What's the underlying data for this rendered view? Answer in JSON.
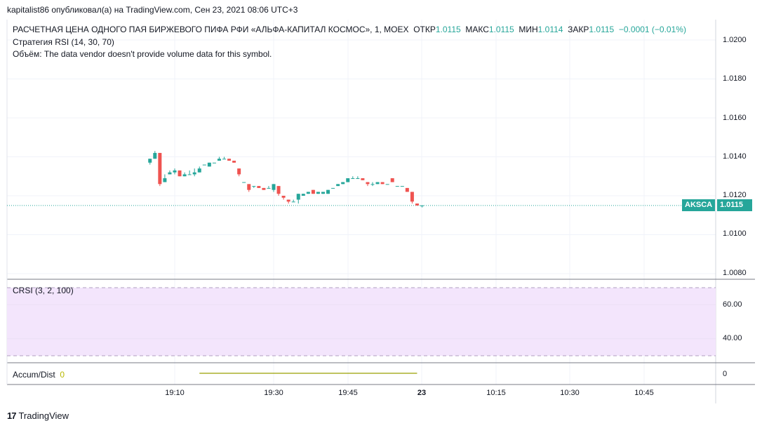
{
  "header": {
    "published_line": "kapitalist86 опубликовал(а) на TradingView.com, Сен 23, 2021 08:06 UTC+3"
  },
  "legend": {
    "symbol_title": "РАСЧЕТНАЯ ЦЕНА ОДНОГО ПАЯ БИРЖЕВОГО ПИФА РФИ «АЛЬФА-КАПИТАЛ КОСМОС», 1, MOEX",
    "open_label": "ОТКР",
    "open_value": "1.0115",
    "high_label": "МАКС",
    "high_value": "1.0115",
    "low_label": "МИН",
    "low_value": "1.0114",
    "close_label": "ЗАКР",
    "close_value": "1.0115",
    "change": "−0.0001 (−0.01%)",
    "strategy": "Стратегия RSI (14, 30, 70)",
    "volume_line": "Объём: The data vendor doesn't provide volume data for this symbol."
  },
  "crsi": {
    "label": "CRSI (3, 2, 100)",
    "band_color": "#f3e5fc",
    "ticks": [
      "60.00",
      "40.00"
    ],
    "upper": 70,
    "lower": 30,
    "range": [
      20,
      80
    ]
  },
  "accum": {
    "label": "Accum/Dist",
    "value": "0",
    "value_color": "#b8b800",
    "axis_tick": "0",
    "line_range": [
      "19:15",
      "19:59"
    ]
  },
  "price_axis": {
    "ticks": [
      "1.0200",
      "1.0180",
      "1.0160",
      "1.0140",
      "1.0120",
      "1.0100",
      "1.0080"
    ],
    "ymin": 1.0077,
    "ymax": 1.0209
  },
  "last_price": {
    "symbol": "AKSCA",
    "value": "1.0115",
    "numeric": 1.0115,
    "color": "#26a69a"
  },
  "time_axis": {
    "labels": [
      "19:10",
      "19:30",
      "19:45",
      "23",
      "10:15",
      "10:30",
      "10:45"
    ]
  },
  "footer": {
    "brand": "TradingView",
    "logo_text": "17"
  },
  "chart_data": {
    "type": "candlestick",
    "timeframe": "1",
    "up_color": "#26a69a",
    "down_color": "#ef5350",
    "candles": [
      {
        "t": "19:05",
        "o": 1.0137,
        "h": 1.0139,
        "c": 1.0139,
        "l": 1.0136
      },
      {
        "t": "19:06",
        "o": 1.0139,
        "h": 1.0143,
        "c": 1.0142,
        "l": 1.0139
      },
      {
        "t": "19:07",
        "o": 1.0142,
        "h": 1.0142,
        "c": 1.0126,
        "l": 1.0125
      },
      {
        "t": "19:08",
        "o": 1.0127,
        "h": 1.0131,
        "c": 1.0129,
        "l": 1.0127
      },
      {
        "t": "19:09",
        "o": 1.0131,
        "h": 1.0133,
        "c": 1.0132,
        "l": 1.0131
      },
      {
        "t": "19:10",
        "o": 1.0132,
        "h": 1.0134,
        "c": 1.0133,
        "l": 1.0131
      },
      {
        "t": "19:11",
        "o": 1.0133,
        "h": 1.0133,
        "c": 1.013,
        "l": 1.013
      },
      {
        "t": "19:12",
        "o": 1.013,
        "h": 1.0132,
        "c": 1.0131,
        "l": 1.013
      },
      {
        "t": "19:13",
        "o": 1.0131,
        "h": 1.0133,
        "c": 1.0131,
        "l": 1.0131
      },
      {
        "t": "19:14",
        "o": 1.0131,
        "h": 1.0134,
        "c": 1.0132,
        "l": 1.013
      },
      {
        "t": "19:15",
        "o": 1.0132,
        "h": 1.0135,
        "c": 1.0134,
        "l": 1.0132
      },
      {
        "t": "19:16",
        "o": 1.0136,
        "h": 1.0136,
        "c": 1.0136,
        "l": 1.0136
      },
      {
        "t": "19:17",
        "o": 1.0135,
        "h": 1.0137,
        "c": 1.0137,
        "l": 1.0135
      },
      {
        "t": "19:18",
        "o": 1.0137,
        "h": 1.0137,
        "c": 1.0137,
        "l": 1.0137
      },
      {
        "t": "19:19",
        "o": 1.0138,
        "h": 1.014,
        "c": 1.0139,
        "l": 1.0138
      },
      {
        "t": "19:20",
        "o": 1.0139,
        "h": 1.014,
        "c": 1.0139,
        "l": 1.0139
      },
      {
        "t": "19:21",
        "o": 1.0139,
        "h": 1.0139,
        "c": 1.0138,
        "l": 1.0138
      },
      {
        "t": "19:22",
        "o": 1.0138,
        "h": 1.0138,
        "c": 1.0137,
        "l": 1.0137
      },
      {
        "t": "19:23",
        "o": 1.0134,
        "h": 1.0134,
        "c": 1.0131,
        "l": 1.013
      },
      {
        "t": "19:24",
        "o": 1.0127,
        "h": 1.0127,
        "c": 1.0127,
        "l": 1.0127
      },
      {
        "t": "19:25",
        "o": 1.0126,
        "h": 1.0126,
        "c": 1.0123,
        "l": 1.0122
      },
      {
        "t": "19:26",
        "o": 1.0125,
        "h": 1.0125,
        "c": 1.0125,
        "l": 1.0124
      },
      {
        "t": "19:27",
        "o": 1.0125,
        "h": 1.0125,
        "c": 1.0124,
        "l": 1.0124
      },
      {
        "t": "19:28",
        "o": 1.0124,
        "h": 1.0124,
        "c": 1.0123,
        "l": 1.0123
      },
      {
        "t": "19:29",
        "o": 1.0124,
        "h": 1.0125,
        "c": 1.0124,
        "l": 1.0124
      },
      {
        "t": "19:30",
        "o": 1.0123,
        "h": 1.0126,
        "c": 1.0126,
        "l": 1.0122
      },
      {
        "t": "19:31",
        "o": 1.0125,
        "h": 1.0125,
        "c": 1.0121,
        "l": 1.012
      },
      {
        "t": "19:32",
        "o": 1.012,
        "h": 1.012,
        "c": 1.0119,
        "l": 1.0118
      },
      {
        "t": "19:33",
        "o": 1.0118,
        "h": 1.0118,
        "c": 1.0117,
        "l": 1.0116
      },
      {
        "t": "19:34",
        "o": 1.0117,
        "h": 1.0118,
        "c": 1.0117,
        "l": 1.0117
      },
      {
        "t": "19:35",
        "o": 1.0118,
        "h": 1.0121,
        "c": 1.0121,
        "l": 1.0116
      },
      {
        "t": "19:36",
        "o": 1.012,
        "h": 1.0121,
        "c": 1.0121,
        "l": 1.012
      },
      {
        "t": "19:37",
        "o": 1.0121,
        "h": 1.0122,
        "c": 1.0122,
        "l": 1.0121
      },
      {
        "t": "19:38",
        "o": 1.0123,
        "h": 1.0123,
        "c": 1.0121,
        "l": 1.0121
      },
      {
        "t": "19:39",
        "o": 1.0121,
        "h": 1.0122,
        "c": 1.0122,
        "l": 1.0121
      },
      {
        "t": "19:40",
        "o": 1.0121,
        "h": 1.0122,
        "c": 1.0122,
        "l": 1.0121
      },
      {
        "t": "19:41",
        "o": 1.0121,
        "h": 1.0123,
        "c": 1.0123,
        "l": 1.0121
      },
      {
        "t": "19:42",
        "o": 1.0124,
        "h": 1.0124,
        "c": 1.0124,
        "l": 1.0124
      },
      {
        "t": "19:43",
        "o": 1.0125,
        "h": 1.0126,
        "c": 1.0126,
        "l": 1.0125
      },
      {
        "t": "19:44",
        "o": 1.0126,
        "h": 1.0127,
        "c": 1.0127,
        "l": 1.0126
      },
      {
        "t": "19:45",
        "o": 1.0127,
        "h": 1.0129,
        "c": 1.0129,
        "l": 1.0127
      },
      {
        "t": "19:46",
        "o": 1.0129,
        "h": 1.013,
        "c": 1.0129,
        "l": 1.0129
      },
      {
        "t": "19:47",
        "o": 1.0129,
        "h": 1.013,
        "c": 1.0129,
        "l": 1.0129
      },
      {
        "t": "19:48",
        "o": 1.0129,
        "h": 1.0129,
        "c": 1.0128,
        "l": 1.0128
      },
      {
        "t": "19:49",
        "o": 1.0127,
        "h": 1.0127,
        "c": 1.0126,
        "l": 1.0125
      },
      {
        "t": "19:50",
        "o": 1.0126,
        "h": 1.0127,
        "c": 1.0126,
        "l": 1.0125
      },
      {
        "t": "19:51",
        "o": 1.0126,
        "h": 1.0127,
        "c": 1.0127,
        "l": 1.0126
      },
      {
        "t": "19:52",
        "o": 1.0127,
        "h": 1.0127,
        "c": 1.0126,
        "l": 1.0126
      },
      {
        "t": "19:53",
        "o": 1.0126,
        "h": 1.0126,
        "c": 1.0126,
        "l": 1.0126
      },
      {
        "t": "19:54",
        "o": 1.0129,
        "h": 1.0129,
        "c": 1.0127,
        "l": 1.0127
      },
      {
        "t": "19:55",
        "o": 1.0125,
        "h": 1.0125,
        "c": 1.0125,
        "l": 1.0125
      },
      {
        "t": "19:56",
        "o": 1.0125,
        "h": 1.0125,
        "c": 1.0125,
        "l": 1.0125
      },
      {
        "t": "19:57",
        "o": 1.0124,
        "h": 1.0124,
        "c": 1.0122,
        "l": 1.0122
      },
      {
        "t": "19:58",
        "o": 1.0122,
        "h": 1.0122,
        "c": 1.0117,
        "l": 1.0116
      },
      {
        "t": "19:59",
        "o": 1.0116,
        "h": 1.0116,
        "c": 1.0115,
        "l": 1.0115
      },
      {
        "t": "20:00",
        "o": 1.0115,
        "h": 1.0115,
        "c": 1.0115,
        "l": 1.0114
      }
    ]
  }
}
